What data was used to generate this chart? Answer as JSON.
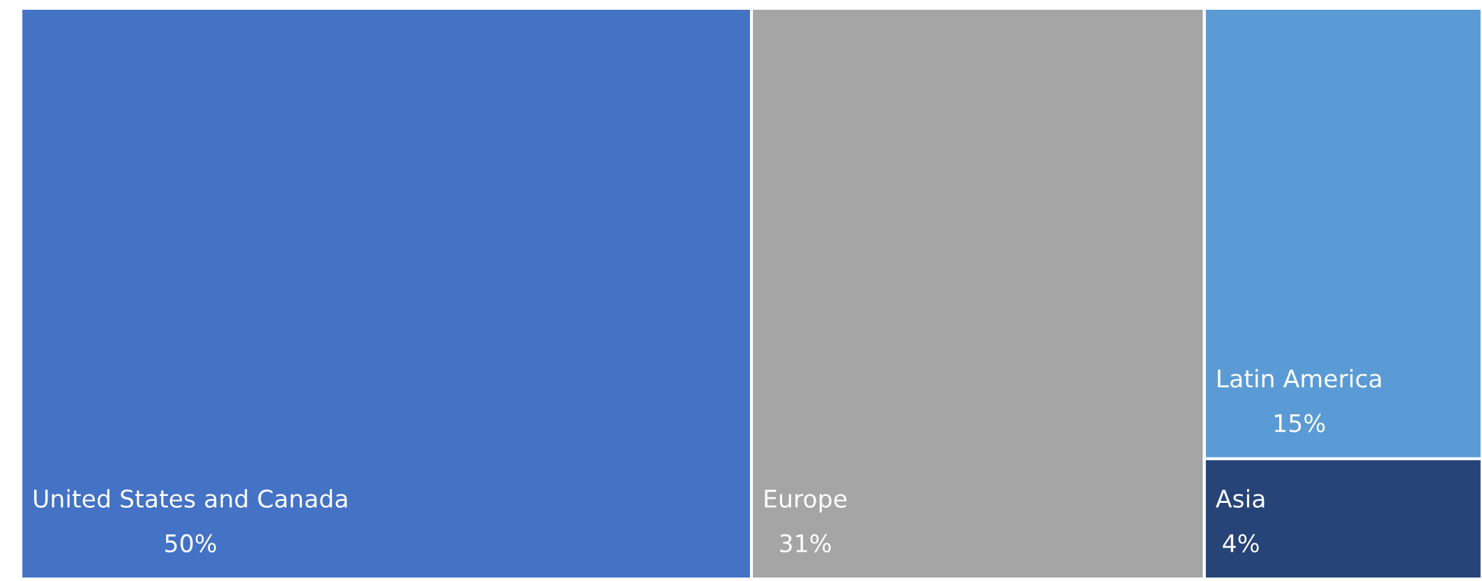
{
  "chart_data": {
    "type": "other",
    "categories": [
      "United States and Canada",
      "Europe",
      "Latin America",
      "Asia"
    ],
    "values": [
      50,
      31,
      15,
      4
    ],
    "value_labels": [
      "50%",
      "31%",
      "15%",
      "4%"
    ],
    "colors": [
      "#4472c4",
      "#a5a5a5",
      "#5b9bd5",
      "#264478"
    ]
  }
}
